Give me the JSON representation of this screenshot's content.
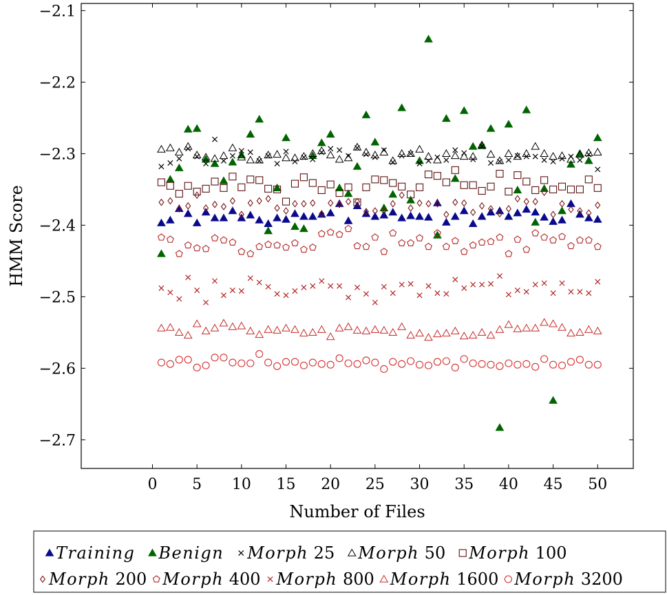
{
  "chart_data": {
    "type": "scatter",
    "title": "",
    "xlabel": "Number of Files",
    "ylabel": "HMM Score",
    "xlim": [
      -8,
      54
    ],
    "ylim": [
      -2.74,
      -2.09
    ],
    "xticks": [
      0,
      5,
      10,
      15,
      20,
      25,
      30,
      35,
      40,
      45,
      50
    ],
    "yticks": [
      -2.7,
      -2.6,
      -2.5,
      -2.4,
      -2.3,
      -2.2,
      -2.1
    ],
    "xtick_labels": [
      "0",
      "5",
      "10",
      "15",
      "20",
      "25",
      "30",
      "35",
      "40",
      "45",
      "50"
    ],
    "ytick_labels": [
      "−2.7",
      "−2.6",
      "−2.5",
      "−2.4",
      "−2.3",
      "−2.2",
      "−2.1"
    ],
    "grid": false,
    "legend_position": "bottom",
    "series": [
      {
        "name": "Training",
        "color": "#0a0a8c",
        "marker": "triangle-filled",
        "x": [
          1,
          2,
          3,
          4,
          5,
          6,
          7,
          8,
          9,
          10,
          11,
          12,
          13,
          14,
          15,
          16,
          17,
          18,
          19,
          20,
          21,
          22,
          23,
          24,
          25,
          26,
          27,
          28,
          29,
          30,
          31,
          32,
          33,
          34,
          35,
          36,
          37,
          38,
          39,
          40,
          41,
          42,
          43,
          44,
          45,
          46,
          47,
          48,
          49,
          50
        ],
        "y": [
          -2.397,
          -2.393,
          -2.377,
          -2.384,
          -2.397,
          -2.382,
          -2.39,
          -2.39,
          -2.38,
          -2.39,
          -2.386,
          -2.393,
          -2.398,
          -2.39,
          -2.392,
          -2.384,
          -2.388,
          -2.388,
          -2.385,
          -2.383,
          -2.37,
          -2.394,
          -2.373,
          -2.384,
          -2.388,
          -2.386,
          -2.382,
          -2.39,
          -2.387,
          -2.388,
          -2.389,
          -2.369,
          -2.396,
          -2.388,
          -2.38,
          -2.398,
          -2.388,
          -2.382,
          -2.38,
          -2.388,
          -2.383,
          -2.378,
          -2.382,
          -2.389,
          -2.395,
          -2.393,
          -2.37,
          -2.385,
          -2.39,
          -2.392
        ]
      },
      {
        "name": "Benign",
        "color": "#006400",
        "marker": "triangle-filled",
        "x": [
          1,
          2,
          3,
          4,
          5,
          6,
          7,
          8,
          9,
          10,
          11,
          12,
          13,
          14,
          15,
          16,
          17,
          18,
          19,
          20,
          21,
          22,
          23,
          24,
          25,
          26,
          27,
          28,
          29,
          30,
          31,
          32,
          33,
          34,
          35,
          36,
          37,
          38,
          39,
          40,
          41,
          42,
          43,
          44,
          45,
          46,
          47,
          48,
          49,
          50
        ],
        "y": [
          -2.44,
          -2.336,
          -2.32,
          -2.266,
          -2.265,
          -2.308,
          -2.314,
          -2.338,
          -2.312,
          -2.302,
          -2.273,
          -2.252,
          -2.408,
          -2.348,
          -2.278,
          -2.402,
          -2.405,
          -2.303,
          -2.285,
          -2.273,
          -2.348,
          -2.356,
          -2.318,
          -2.246,
          -2.284,
          -2.376,
          -2.357,
          -2.236,
          -2.365,
          -2.31,
          -2.14,
          -2.414,
          -2.251,
          -2.335,
          -2.24,
          -2.29,
          -2.289,
          -2.265,
          -2.683,
          -2.259,
          -2.351,
          -2.239,
          -2.396,
          -2.349,
          -2.645,
          -2.38,
          -2.315,
          -2.3,
          -2.31,
          -2.278
        ]
      },
      {
        "name": "Morph 25",
        "color": "#000000",
        "marker": "x",
        "x": [
          1,
          2,
          3,
          4,
          5,
          6,
          7,
          8,
          9,
          10,
          11,
          12,
          13,
          14,
          15,
          16,
          17,
          18,
          19,
          20,
          21,
          22,
          23,
          24,
          25,
          26,
          27,
          28,
          29,
          30,
          31,
          32,
          33,
          34,
          35,
          36,
          37,
          38,
          39,
          40,
          41,
          42,
          43,
          44,
          45,
          46,
          47,
          48,
          49,
          50
        ],
        "y": [
          -2.318,
          -2.313,
          -2.307,
          -2.293,
          -2.304,
          -2.314,
          -2.28,
          -2.31,
          -2.303,
          -2.296,
          -2.298,
          -2.31,
          -2.303,
          -2.314,
          -2.297,
          -2.311,
          -2.305,
          -2.308,
          -2.298,
          -2.293,
          -2.295,
          -2.303,
          -2.292,
          -2.301,
          -2.305,
          -2.295,
          -2.312,
          -2.303,
          -2.3,
          -2.314,
          -2.31,
          -2.305,
          -2.309,
          -2.295,
          -2.299,
          -2.308,
          -2.29,
          -2.313,
          -2.311,
          -2.309,
          -2.303,
          -2.304,
          -2.304,
          -2.309,
          -2.311,
          -2.307,
          -2.304,
          -2.309,
          -2.301,
          -2.322
        ]
      },
      {
        "name": "Morph 50",
        "color": "#000000",
        "marker": "triangle-open",
        "x": [
          1,
          2,
          3,
          4,
          5,
          6,
          7,
          8,
          9,
          10,
          11,
          12,
          13,
          14,
          15,
          16,
          17,
          18,
          19,
          20,
          21,
          22,
          23,
          24,
          25,
          26,
          27,
          28,
          29,
          30,
          31,
          32,
          33,
          34,
          35,
          36,
          37,
          38,
          39,
          40,
          41,
          42,
          43,
          44,
          45,
          46,
          47,
          48,
          49,
          50
        ],
        "y": [
          -2.294,
          -2.292,
          -2.298,
          -2.29,
          -2.302,
          -2.305,
          -2.307,
          -2.303,
          -2.292,
          -2.305,
          -2.309,
          -2.309,
          -2.302,
          -2.301,
          -2.306,
          -2.306,
          -2.304,
          -2.3,
          -2.296,
          -2.302,
          -2.308,
          -2.306,
          -2.291,
          -2.298,
          -2.302,
          -2.298,
          -2.31,
          -2.3,
          -2.3,
          -2.294,
          -2.304,
          -2.309,
          -2.3,
          -2.303,
          -2.304,
          -2.304,
          -2.288,
          -2.301,
          -2.31,
          -2.3,
          -2.304,
          -2.3,
          -2.29,
          -2.3,
          -2.304,
          -2.303,
          -2.308,
          -2.301,
          -2.299,
          -2.298
        ]
      },
      {
        "name": "Morph 100",
        "color": "#5c1010",
        "marker": "square-open",
        "x": [
          1,
          2,
          3,
          4,
          5,
          6,
          7,
          8,
          9,
          10,
          11,
          12,
          13,
          14,
          15,
          16,
          17,
          18,
          19,
          20,
          21,
          22,
          23,
          24,
          25,
          26,
          27,
          28,
          29,
          30,
          31,
          32,
          33,
          34,
          35,
          36,
          37,
          38,
          39,
          40,
          41,
          42,
          43,
          44,
          45,
          46,
          47,
          48,
          49,
          50
        ],
        "y": [
          -2.34,
          -2.345,
          -2.356,
          -2.345,
          -2.353,
          -2.349,
          -2.339,
          -2.348,
          -2.332,
          -2.347,
          -2.336,
          -2.337,
          -2.349,
          -2.35,
          -2.367,
          -2.342,
          -2.333,
          -2.341,
          -2.351,
          -2.343,
          -2.355,
          -2.347,
          -2.368,
          -2.347,
          -2.336,
          -2.337,
          -2.341,
          -2.346,
          -2.357,
          -2.347,
          -2.329,
          -2.331,
          -2.34,
          -2.323,
          -2.344,
          -2.344,
          -2.352,
          -2.346,
          -2.328,
          -2.353,
          -2.33,
          -2.339,
          -2.351,
          -2.337,
          -2.35,
          -2.346,
          -2.35,
          -2.35,
          -2.336,
          -2.348
        ]
      },
      {
        "name": "Morph 200",
        "color": "#7a1515",
        "marker": "diamond-open",
        "x": [
          1,
          2,
          3,
          4,
          5,
          6,
          7,
          8,
          9,
          10,
          11,
          12,
          13,
          14,
          15,
          16,
          17,
          18,
          19,
          20,
          21,
          22,
          23,
          24,
          25,
          26,
          27,
          28,
          29,
          30,
          31,
          32,
          33,
          34,
          35,
          36,
          37,
          38,
          39,
          40,
          41,
          42,
          43,
          44,
          45,
          46,
          47,
          48,
          49,
          50
        ],
        "y": [
          -2.368,
          -2.366,
          -2.377,
          -2.373,
          -2.358,
          -2.376,
          -2.371,
          -2.374,
          -2.366,
          -2.385,
          -2.369,
          -2.366,
          -2.363,
          -2.376,
          -2.38,
          -2.37,
          -2.37,
          -2.369,
          -2.384,
          -2.369,
          -2.371,
          -2.367,
          -2.367,
          -2.381,
          -2.38,
          -2.38,
          -2.37,
          -2.358,
          -2.376,
          -2.369,
          -2.37,
          -2.37,
          -2.385,
          -2.368,
          -2.369,
          -2.382,
          -2.373,
          -2.377,
          -2.384,
          -2.377,
          -2.363,
          -2.367,
          -2.367,
          -2.354,
          -2.385,
          -2.37,
          -2.378,
          -2.38,
          -2.383,
          -2.372
        ]
      },
      {
        "name": "Morph 400",
        "color": "#b22222",
        "marker": "pentagon-open",
        "x": [
          1,
          2,
          3,
          4,
          5,
          6,
          7,
          8,
          9,
          10,
          11,
          12,
          13,
          14,
          15,
          16,
          17,
          18,
          19,
          20,
          21,
          22,
          23,
          24,
          25,
          26,
          27,
          28,
          29,
          30,
          31,
          32,
          33,
          34,
          35,
          36,
          37,
          38,
          39,
          40,
          41,
          42,
          43,
          44,
          45,
          46,
          47,
          48,
          49,
          50
        ],
        "y": [
          -2.417,
          -2.42,
          -2.44,
          -2.428,
          -2.432,
          -2.433,
          -2.418,
          -2.421,
          -2.424,
          -2.437,
          -2.44,
          -2.43,
          -2.427,
          -2.428,
          -2.431,
          -2.425,
          -2.434,
          -2.431,
          -2.412,
          -2.41,
          -2.413,
          -2.405,
          -2.429,
          -2.43,
          -2.417,
          -2.437,
          -2.411,
          -2.425,
          -2.425,
          -2.418,
          -2.43,
          -2.411,
          -2.43,
          -2.422,
          -2.437,
          -2.428,
          -2.424,
          -2.423,
          -2.417,
          -2.44,
          -2.42,
          -2.434,
          -2.411,
          -2.417,
          -2.421,
          -2.416,
          -2.429,
          -2.421,
          -2.421,
          -2.43
        ]
      },
      {
        "name": "Morph 800",
        "color": "#b22222",
        "marker": "x",
        "x": [
          1,
          2,
          3,
          4,
          5,
          6,
          7,
          8,
          9,
          10,
          11,
          12,
          13,
          14,
          15,
          16,
          17,
          18,
          19,
          20,
          21,
          22,
          23,
          24,
          25,
          26,
          27,
          28,
          29,
          30,
          31,
          32,
          33,
          34,
          35,
          36,
          37,
          38,
          39,
          40,
          41,
          42,
          43,
          44,
          45,
          46,
          47,
          48,
          49,
          50
        ],
        "y": [
          -2.488,
          -2.494,
          -2.503,
          -2.473,
          -2.491,
          -2.508,
          -2.478,
          -2.498,
          -2.491,
          -2.492,
          -2.474,
          -2.48,
          -2.486,
          -2.496,
          -2.498,
          -2.492,
          -2.487,
          -2.485,
          -2.478,
          -2.485,
          -2.485,
          -2.501,
          -2.487,
          -2.496,
          -2.508,
          -2.486,
          -2.495,
          -2.483,
          -2.482,
          -2.498,
          -2.485,
          -2.495,
          -2.496,
          -2.476,
          -2.488,
          -2.483,
          -2.483,
          -2.482,
          -2.471,
          -2.497,
          -2.491,
          -2.493,
          -2.483,
          -2.481,
          -2.495,
          -2.481,
          -2.493,
          -2.493,
          -2.495,
          -2.479
        ]
      },
      {
        "name": "Morph 1600",
        "color": "#c62828",
        "marker": "triangle-open",
        "x": [
          1,
          2,
          3,
          4,
          5,
          6,
          7,
          8,
          9,
          10,
          11,
          12,
          13,
          14,
          15,
          16,
          17,
          18,
          19,
          20,
          21,
          22,
          23,
          24,
          25,
          26,
          27,
          28,
          29,
          30,
          31,
          32,
          33,
          34,
          35,
          36,
          37,
          38,
          39,
          40,
          41,
          42,
          43,
          44,
          45,
          46,
          47,
          48,
          49,
          50
        ],
        "y": [
          -2.544,
          -2.543,
          -2.55,
          -2.554,
          -2.538,
          -2.548,
          -2.544,
          -2.537,
          -2.542,
          -2.541,
          -2.548,
          -2.553,
          -2.546,
          -2.547,
          -2.544,
          -2.546,
          -2.551,
          -2.55,
          -2.546,
          -2.556,
          -2.544,
          -2.542,
          -2.547,
          -2.548,
          -2.546,
          -2.547,
          -2.55,
          -2.542,
          -2.554,
          -2.551,
          -2.557,
          -2.552,
          -2.551,
          -2.548,
          -2.555,
          -2.554,
          -2.55,
          -2.554,
          -2.546,
          -2.539,
          -2.545,
          -2.544,
          -2.544,
          -2.536,
          -2.538,
          -2.543,
          -2.551,
          -2.55,
          -2.546,
          -2.548
        ]
      },
      {
        "name": "Morph 3200",
        "color": "#d32f2f",
        "marker": "circle-open",
        "x": [
          1,
          2,
          3,
          4,
          5,
          6,
          7,
          8,
          9,
          10,
          11,
          12,
          13,
          14,
          15,
          16,
          17,
          18,
          19,
          20,
          21,
          22,
          23,
          24,
          25,
          26,
          27,
          28,
          29,
          30,
          31,
          32,
          33,
          34,
          35,
          36,
          37,
          38,
          39,
          40,
          41,
          42,
          43,
          44,
          45,
          46,
          47,
          48,
          49,
          50
        ],
        "y": [
          -2.592,
          -2.594,
          -2.588,
          -2.588,
          -2.599,
          -2.596,
          -2.585,
          -2.585,
          -2.592,
          -2.593,
          -2.593,
          -2.58,
          -2.592,
          -2.597,
          -2.591,
          -2.591,
          -2.596,
          -2.592,
          -2.594,
          -2.595,
          -2.586,
          -2.593,
          -2.594,
          -2.589,
          -2.592,
          -2.601,
          -2.591,
          -2.594,
          -2.59,
          -2.595,
          -2.596,
          -2.591,
          -2.59,
          -2.599,
          -2.587,
          -2.593,
          -2.594,
          -2.595,
          -2.597,
          -2.593,
          -2.595,
          -2.594,
          -2.598,
          -2.587,
          -2.595,
          -2.596,
          -2.591,
          -2.588,
          -2.595,
          -2.595
        ]
      }
    ]
  }
}
